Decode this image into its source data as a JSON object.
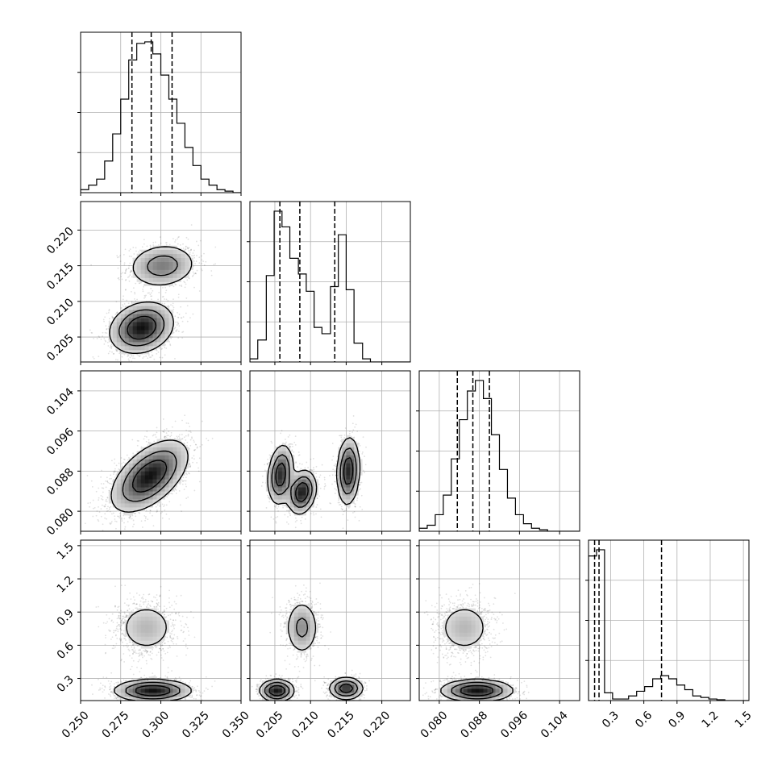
{
  "chart_data": {
    "type": "corner",
    "grid": "on",
    "parameters": [
      {
        "range": [
          0.25,
          0.35
        ],
        "ticks": [
          0.25,
          0.275,
          0.3,
          0.325,
          0.35
        ],
        "tick_labels": [
          "0.250",
          "0.275",
          "0.300",
          "0.325",
          "0.350"
        ],
        "hist": {
          "edges": [
            0.25,
            0.255,
            0.26,
            0.265,
            0.27,
            0.275,
            0.28,
            0.285,
            0.29,
            0.295,
            0.3,
            0.305,
            0.31,
            0.315,
            0.32,
            0.325,
            0.33,
            0.335,
            0.34,
            0.345,
            0.35
          ],
          "values": [
            0.02,
            0.05,
            0.09,
            0.21,
            0.39,
            0.62,
            0.88,
            0.99,
            1.0,
            0.92,
            0.78,
            0.62,
            0.46,
            0.3,
            0.18,
            0.09,
            0.05,
            0.02,
            0.01,
            0.0
          ]
        },
        "quantiles": [
          0.282,
          0.294,
          0.307
        ]
      },
      {
        "range": [
          0.2015,
          0.224
        ],
        "ticks": [
          0.205,
          0.21,
          0.215,
          0.22
        ],
        "tick_labels": [
          "0.205",
          "0.210",
          "0.215",
          "0.220"
        ],
        "hist": {
          "edges": [
            0.2015,
            0.2026,
            0.2038,
            0.2049,
            0.206,
            0.2071,
            0.2083,
            0.2094,
            0.2105,
            0.2116,
            0.2128,
            0.2139,
            0.215,
            0.2161,
            0.2173,
            0.2184,
            0.2195,
            0.2206,
            0.2218,
            0.2229,
            0.224
          ],
          "values": [
            0.02,
            0.14,
            0.55,
            0.96,
            0.86,
            0.66,
            0.56,
            0.45,
            0.22,
            0.18,
            0.48,
            0.81,
            0.46,
            0.12,
            0.02,
            0.0,
            0.0,
            0.0,
            0.0,
            0.0
          ]
        },
        "quantiles": [
          0.2057,
          0.2085,
          0.2134
        ]
      },
      {
        "range": [
          0.076,
          0.108
        ],
        "ticks": [
          0.08,
          0.088,
          0.096,
          0.104
        ],
        "tick_labels": [
          "0.080",
          "0.088",
          "0.096",
          "0.104"
        ],
        "hist": {
          "edges": [
            0.076,
            0.0776,
            0.0792,
            0.0808,
            0.0824,
            0.084,
            0.0856,
            0.0872,
            0.0888,
            0.0904,
            0.092,
            0.0936,
            0.0952,
            0.0968,
            0.0984,
            0.1,
            0.1016,
            0.1032,
            0.1048,
            0.1064,
            0.108
          ],
          "values": [
            0.02,
            0.04,
            0.11,
            0.24,
            0.48,
            0.74,
            0.93,
            1.0,
            0.88,
            0.64,
            0.41,
            0.22,
            0.11,
            0.05,
            0.02,
            0.01,
            0.0,
            0.0,
            0.0,
            0.0
          ]
        },
        "quantiles": [
          0.0836,
          0.0867,
          0.09
        ]
      },
      {
        "range": [
          0.1,
          1.55
        ],
        "ticks": [
          0.3,
          0.6,
          0.9,
          1.2,
          1.5
        ],
        "tick_labels": [
          "0.3",
          "0.6",
          "0.9",
          "1.2",
          "1.5"
        ],
        "hist": {
          "edges": [
            0.1,
            0.1725,
            0.245,
            0.3175,
            0.39,
            0.4625,
            0.535,
            0.6075,
            0.68,
            0.7525,
            0.825,
            0.8975,
            0.97,
            1.0425,
            1.115,
            1.1875,
            1.26,
            1.3325,
            1.405,
            1.4775,
            1.55
          ],
          "values": [
            0.93,
            0.97,
            0.05,
            0.01,
            0.01,
            0.03,
            0.06,
            0.09,
            0.14,
            0.16,
            0.14,
            0.1,
            0.07,
            0.03,
            0.02,
            0.01,
            0.005,
            0.0,
            0.0,
            0.0
          ]
        },
        "quantiles": [
          0.155,
          0.195,
          0.76
        ]
      }
    ],
    "contours_2d": [
      {
        "x_param": 0,
        "y_param": 1,
        "modes": [
          {
            "x": 0.301,
            "y": 0.215,
            "sx": 0.011,
            "sy": 0.0016,
            "rho": 0.1,
            "w": 0.35
          },
          {
            "x": 0.288,
            "y": 0.2063,
            "sx": 0.01,
            "sy": 0.0018,
            "rho": 0.2,
            "w": 0.65
          }
        ]
      },
      {
        "x_param": 0,
        "y_param": 2,
        "modes": [
          {
            "x": 0.293,
            "y": 0.087,
            "sx": 0.012,
            "sy": 0.0036,
            "rho": 0.55,
            "w": 1.0
          }
        ]
      },
      {
        "x_param": 1,
        "y_param": 2,
        "modes": [
          {
            "x": 0.2058,
            "y": 0.0873,
            "sx": 0.0009,
            "sy": 0.003,
            "rho": 0.2,
            "w": 0.34
          },
          {
            "x": 0.2088,
            "y": 0.0838,
            "sx": 0.001,
            "sy": 0.0022,
            "rho": 0.2,
            "w": 0.3
          },
          {
            "x": 0.2153,
            "y": 0.088,
            "sx": 0.0008,
            "sy": 0.0034,
            "rho": 0.1,
            "w": 0.36
          }
        ]
      },
      {
        "x_param": 0,
        "y_param": 3,
        "modes": [
          {
            "x": 0.295,
            "y": 0.19,
            "sx": 0.012,
            "sy": 0.05,
            "rho": 0.0,
            "w": 0.62
          },
          {
            "x": 0.291,
            "y": 0.76,
            "sx": 0.01,
            "sy": 0.13,
            "rho": 0.0,
            "w": 0.38
          }
        ]
      },
      {
        "x_param": 1,
        "y_param": 3,
        "modes": [
          {
            "x": 0.2053,
            "y": 0.19,
            "sx": 0.0012,
            "sy": 0.05,
            "rho": 0.0,
            "w": 0.33
          },
          {
            "x": 0.215,
            "y": 0.21,
            "sx": 0.0012,
            "sy": 0.05,
            "rho": 0.0,
            "w": 0.29
          },
          {
            "x": 0.2088,
            "y": 0.76,
            "sx": 0.0012,
            "sy": 0.13,
            "rho": 0.0,
            "w": 0.38
          }
        ]
      },
      {
        "x_param": 2,
        "y_param": 3,
        "modes": [
          {
            "x": 0.0875,
            "y": 0.19,
            "sx": 0.0036,
            "sy": 0.05,
            "rho": 0.0,
            "w": 0.62
          },
          {
            "x": 0.085,
            "y": 0.76,
            "sx": 0.003,
            "sy": 0.13,
            "rho": 0.0,
            "w": 0.38
          }
        ]
      }
    ]
  }
}
